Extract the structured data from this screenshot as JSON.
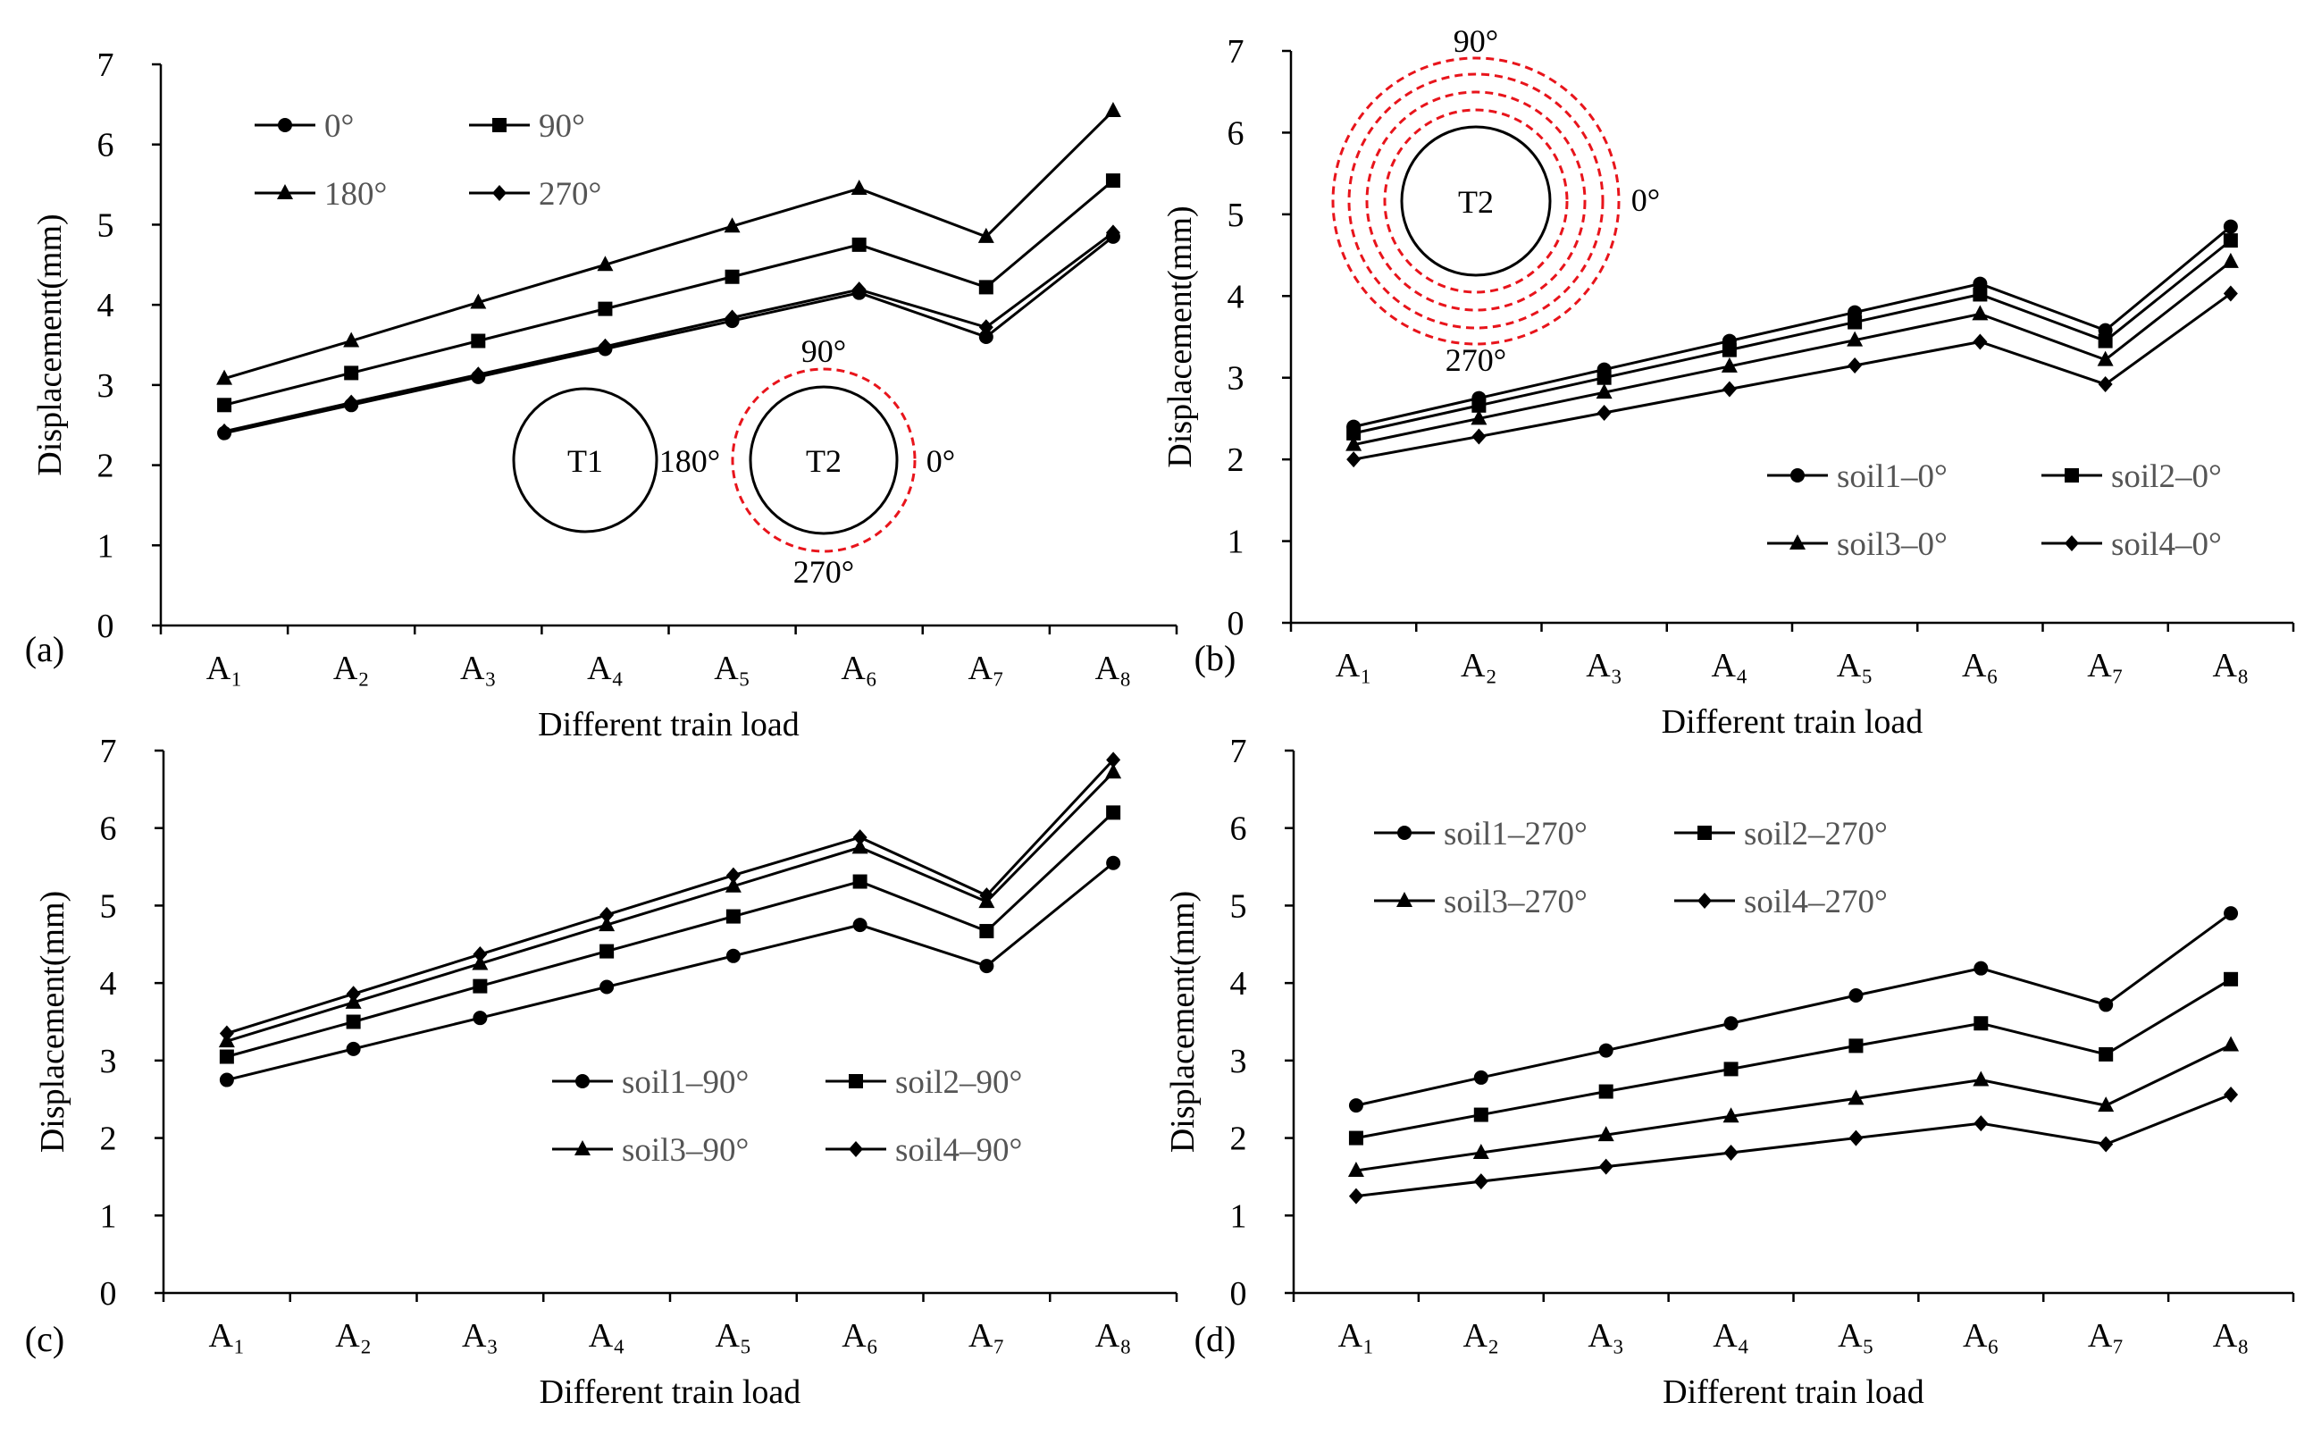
{
  "chart_data": [
    {
      "type": "line",
      "panel_label": "(a)",
      "xlabel": "Different train load",
      "ylabel": "Displacement(mm)",
      "ylim": [
        0,
        7
      ],
      "yticks": [
        "0",
        "1",
        "2",
        "3",
        "4",
        "5",
        "6",
        "7"
      ],
      "categories": [
        "A₁",
        "A₂",
        "A₃",
        "A₄",
        "A₅",
        "A₆",
        "A₇",
        "A₈"
      ],
      "series": [
        {
          "name": "0°",
          "marker": "circle",
          "values": [
            2.4,
            2.75,
            3.1,
            3.45,
            3.8,
            4.15,
            3.6,
            4.85
          ]
        },
        {
          "name": "90°",
          "marker": "square",
          "values": [
            2.75,
            3.15,
            3.55,
            3.95,
            4.35,
            4.75,
            4.22,
            5.55
          ]
        },
        {
          "name": "180°",
          "marker": "triangle",
          "values": [
            3.08,
            3.55,
            4.03,
            4.5,
            4.98,
            5.45,
            4.85,
            6.42
          ]
        },
        {
          "name": "270°",
          "marker": "diamond",
          "values": [
            2.42,
            2.78,
            3.13,
            3.48,
            3.84,
            4.19,
            3.72,
            4.9
          ]
        }
      ],
      "diagram": {
        "left_tunnel": "T1",
        "right_tunnel": "T2",
        "angle_top": "90°",
        "angle_left": "180°",
        "angle_right": "0°",
        "angle_bottom": "270°"
      }
    },
    {
      "type": "line",
      "panel_label": "(b)",
      "xlabel": "Different train load",
      "ylabel": "Displacement(mm)",
      "ylim": [
        0,
        7
      ],
      "yticks": [
        "0",
        "1",
        "2",
        "3",
        "4",
        "5",
        "6",
        "7"
      ],
      "categories": [
        "A₁",
        "A₂",
        "A₃",
        "A₄",
        "A₅",
        "A₆",
        "A₇",
        "A₈"
      ],
      "series": [
        {
          "name": "soil1–0°",
          "marker": "circle",
          "values": [
            2.4,
            2.75,
            3.1,
            3.45,
            3.8,
            4.15,
            3.58,
            4.85
          ]
        },
        {
          "name": "soil2–0°",
          "marker": "square",
          "values": [
            2.32,
            2.66,
            3.0,
            3.34,
            3.68,
            4.02,
            3.45,
            4.68
          ]
        },
        {
          "name": "soil3–0°",
          "marker": "triangle",
          "values": [
            2.18,
            2.5,
            2.82,
            3.14,
            3.46,
            3.78,
            3.22,
            4.42
          ]
        },
        {
          "name": "soil4–0°",
          "marker": "diamond",
          "values": [
            2.0,
            2.28,
            2.57,
            2.86,
            3.15,
            3.44,
            2.92,
            4.03
          ]
        }
      ],
      "diagram": {
        "tunnel": "T2",
        "angle_top": "90°",
        "angle_right": "0°",
        "angle_bottom": "270°"
      }
    },
    {
      "type": "line",
      "panel_label": "(c)",
      "xlabel": "Different train load",
      "ylabel": "Displacement(mm)",
      "ylim": [
        0,
        7
      ],
      "yticks": [
        "0",
        "1",
        "2",
        "3",
        "4",
        "5",
        "6",
        "7"
      ],
      "categories": [
        "A₁",
        "A₂",
        "A₃",
        "A₄",
        "A₅",
        "A₆",
        "A₇",
        "A₈"
      ],
      "series": [
        {
          "name": "soil1–90°",
          "marker": "circle",
          "values": [
            2.75,
            3.15,
            3.55,
            3.95,
            4.35,
            4.75,
            4.22,
            5.55
          ]
        },
        {
          "name": "soil2–90°",
          "marker": "square",
          "values": [
            3.05,
            3.5,
            3.96,
            4.41,
            4.86,
            5.31,
            4.67,
            6.2
          ]
        },
        {
          "name": "soil3–90°",
          "marker": "triangle",
          "values": [
            3.25,
            3.75,
            4.25,
            4.75,
            5.25,
            5.75,
            5.05,
            6.72
          ]
        },
        {
          "name": "soil4–90°",
          "marker": "diamond",
          "values": [
            3.35,
            3.86,
            4.37,
            4.88,
            5.39,
            5.88,
            5.13,
            6.88
          ]
        }
      ]
    },
    {
      "type": "line",
      "panel_label": "(d)",
      "xlabel": "Different train load",
      "ylabel": "Displacement(mm)",
      "ylim": [
        0,
        7
      ],
      "yticks": [
        "0",
        "1",
        "2",
        "3",
        "4",
        "5",
        "6",
        "7"
      ],
      "categories": [
        "A₁",
        "A₂",
        "A₃",
        "A₄",
        "A₅",
        "A₆",
        "A₇",
        "A₈"
      ],
      "series": [
        {
          "name": "soil1–270°",
          "marker": "circle",
          "values": [
            2.42,
            2.78,
            3.13,
            3.48,
            3.84,
            4.19,
            3.72,
            4.9
          ]
        },
        {
          "name": "soil2–270°",
          "marker": "square",
          "values": [
            2.0,
            2.3,
            2.6,
            2.89,
            3.19,
            3.48,
            3.08,
            4.05
          ]
        },
        {
          "name": "soil3–270°",
          "marker": "triangle",
          "values": [
            1.58,
            1.81,
            2.04,
            2.28,
            2.51,
            2.75,
            2.42,
            3.2
          ]
        },
        {
          "name": "soil4–270°",
          "marker": "diamond",
          "values": [
            1.25,
            1.44,
            1.63,
            1.81,
            2.0,
            2.19,
            1.92,
            2.56
          ]
        }
      ]
    }
  ]
}
